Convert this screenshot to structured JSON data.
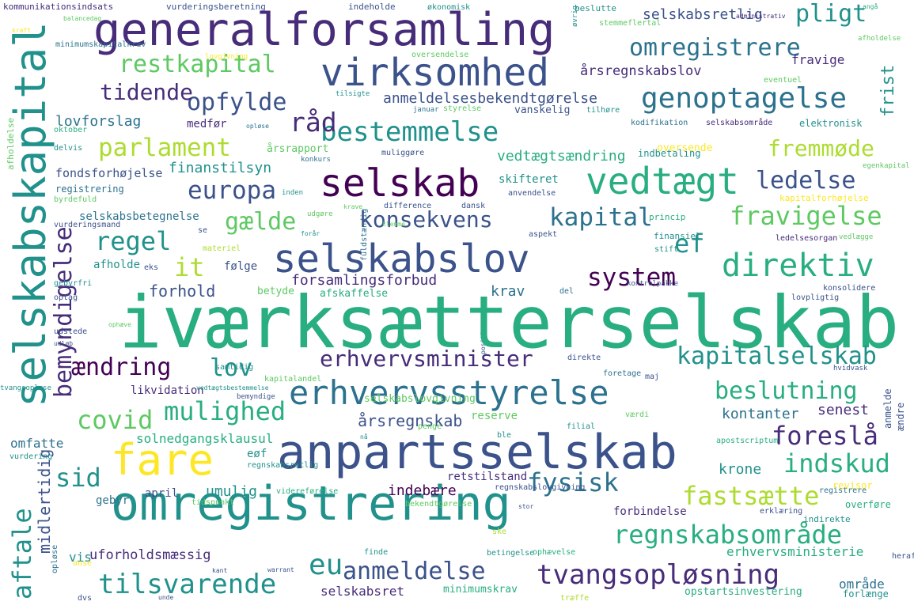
{
  "palette": {
    "dark_purple": "#440154",
    "purple": "#472c7a",
    "indigo": "#3b528b",
    "blue": "#2c728e",
    "teal": "#21918c",
    "green": "#28ae80",
    "light_green": "#5ec962",
    "lime": "#addc30",
    "yellow": "#fde725"
  },
  "words": [
    {
      "text": "iværksætterselskab",
      "c": "green"
    },
    {
      "text": "generalforsamling",
      "c": "purple"
    },
    {
      "text": "omregistrering",
      "c": "teal"
    },
    {
      "text": "anpartsselskab",
      "c": "indigo"
    },
    {
      "text": "selskabskapital",
      "c": "teal"
    },
    {
      "text": "selskabslov",
      "c": "indigo"
    },
    {
      "text": "virksomhed",
      "c": "indigo"
    },
    {
      "text": "selskab",
      "c": "dark_purple"
    },
    {
      "text": "vedtægt",
      "c": "green"
    },
    {
      "text": "erhvervsstyrelse",
      "c": "blue"
    },
    {
      "text": "fare",
      "c": "yellow"
    },
    {
      "text": "bestemmelse",
      "c": "teal"
    },
    {
      "text": "tvangsopløsning",
      "c": "purple"
    },
    {
      "text": "direktiv",
      "c": "green"
    },
    {
      "text": "genoptagelse",
      "c": "blue"
    },
    {
      "text": "omregistrere",
      "c": "blue"
    },
    {
      "text": "parlament",
      "c": "lime"
    },
    {
      "text": "restkapital",
      "c": "light_green"
    },
    {
      "text": "europa",
      "c": "indigo"
    },
    {
      "text": "ledelse",
      "c": "indigo"
    },
    {
      "text": "fravigelse",
      "c": "light_green"
    },
    {
      "text": "kapitalselskab",
      "c": "teal"
    },
    {
      "text": "erhvervsminister",
      "c": "purple"
    },
    {
      "text": "beslutning",
      "c": "green"
    },
    {
      "text": "regnskabsområde",
      "c": "green"
    },
    {
      "text": "tilsvarende",
      "c": "teal"
    },
    {
      "text": "anmeldelse",
      "c": "indigo"
    },
    {
      "text": "mulighed",
      "c": "green"
    },
    {
      "text": "foreslå",
      "c": "purple"
    },
    {
      "text": "fastsætte",
      "c": "lime"
    },
    {
      "text": "indskud",
      "c": "green"
    },
    {
      "text": "fysisk",
      "c": "blue"
    },
    {
      "text": "konsekvens",
      "c": "indigo"
    },
    {
      "text": "kapital",
      "c": "blue"
    },
    {
      "text": "gælde",
      "c": "light_green"
    },
    {
      "text": "system",
      "c": "dark_purple"
    },
    {
      "text": "regel",
      "c": "teal"
    },
    {
      "text": "opfylde",
      "c": "indigo"
    },
    {
      "text": "tidende",
      "c": "purple"
    },
    {
      "text": "råd",
      "c": "purple"
    },
    {
      "text": "pligt",
      "c": "teal"
    },
    {
      "text": "fremmøde",
      "c": "lime"
    },
    {
      "text": "ændring",
      "c": "dark_purple"
    },
    {
      "text": "lov",
      "c": "teal"
    },
    {
      "text": "covid",
      "c": "light_green"
    },
    {
      "text": "sid",
      "c": "teal"
    },
    {
      "text": "eu",
      "c": "teal"
    },
    {
      "text": "ef",
      "c": "teal"
    },
    {
      "text": "it",
      "c": "lime"
    },
    {
      "text": "bemyndigelse",
      "c": "purple"
    },
    {
      "text": "aftale",
      "c": "teal"
    },
    {
      "text": "årsregnskab",
      "c": "indigo"
    },
    {
      "text": "selskabsretlig",
      "c": "indigo"
    },
    {
      "text": "årsregnskabslov",
      "c": "purple"
    },
    {
      "text": "anmeldelsesbekendtgørelse",
      "c": "indigo"
    },
    {
      "text": "vedtægtsændring",
      "c": "green"
    },
    {
      "text": "finanstilsyn",
      "c": "teal"
    },
    {
      "text": "lovforslag",
      "c": "blue"
    },
    {
      "text": "fondsforhøjelse",
      "c": "indigo"
    },
    {
      "text": "selskabsbetegnelse",
      "c": "blue"
    },
    {
      "text": "forsamlingsforbud",
      "c": "purple"
    },
    {
      "text": "forhold",
      "c": "indigo"
    },
    {
      "text": "krav",
      "c": "blue"
    },
    {
      "text": "kontanter",
      "c": "blue"
    },
    {
      "text": "senest",
      "c": "purple"
    },
    {
      "text": "krone",
      "c": "teal"
    },
    {
      "text": "solnedgangsklausul",
      "c": "green"
    },
    {
      "text": "omfatte",
      "c": "blue"
    },
    {
      "text": "umulig",
      "c": "teal"
    },
    {
      "text": "indebære",
      "c": "dark_purple"
    },
    {
      "text": "retstilstand",
      "c": "purple"
    },
    {
      "text": "skifteret",
      "c": "teal"
    },
    {
      "text": "frist",
      "c": "teal"
    },
    {
      "text": "fravige",
      "c": "purple"
    },
    {
      "text": "medfør",
      "c": "purple"
    },
    {
      "text": "uforholdsmæssig",
      "c": "purple"
    },
    {
      "text": "vis",
      "c": "teal"
    },
    {
      "text": "midlertidig",
      "c": "indigo"
    },
    {
      "text": "erhvervsministerie",
      "c": "green"
    },
    {
      "text": "selskabsret",
      "c": "purple"
    },
    {
      "text": "forbindelse",
      "c": "purple"
    },
    {
      "text": "område",
      "c": "blue"
    },
    {
      "text": "minimumskrav",
      "c": "green"
    },
    {
      "text": "opstartsinvestering",
      "c": "green"
    },
    {
      "text": "reserve",
      "c": "light_green"
    },
    {
      "text": "afholde",
      "c": "teal"
    },
    {
      "text": "følge",
      "c": "indigo"
    },
    {
      "text": "betyde",
      "c": "light_green"
    },
    {
      "text": "afskaffelse",
      "c": "green"
    },
    {
      "text": "gebyr",
      "c": "blue"
    },
    {
      "text": "april",
      "c": "indigo"
    },
    {
      "text": "eøf",
      "c": "teal"
    },
    {
      "text": "registrering",
      "c": "blue"
    },
    {
      "text": "indbetaling",
      "c": "teal"
    },
    {
      "text": "likvidation",
      "c": "purple"
    },
    {
      "text": "selskabslovgivning",
      "c": "light_green"
    },
    {
      "text": "forlænge",
      "c": "teal"
    },
    {
      "text": "kommunikationsindsats",
      "c": "purple"
    },
    {
      "text": "vurderingsberetning",
      "c": "indigo"
    },
    {
      "text": "indeholde",
      "c": "indigo"
    },
    {
      "text": "økonomisk",
      "c": "teal"
    },
    {
      "text": "beslutte",
      "c": "teal"
    },
    {
      "text": "stemmeflertal",
      "c": "light_green"
    },
    {
      "text": "oversendelse",
      "c": "light_green"
    },
    {
      "text": "oversende",
      "c": "yellow"
    },
    {
      "text": "kodifikation",
      "c": "blue"
    },
    {
      "text": "selskabsområde",
      "c": "purple"
    },
    {
      "text": "elektronisk",
      "c": "teal"
    },
    {
      "text": "vanskelig",
      "c": "indigo"
    },
    {
      "text": "styrelse",
      "c": "light_green"
    },
    {
      "text": "januar",
      "c": "blue"
    },
    {
      "text": "tilhøre",
      "c": "teal"
    },
    {
      "text": "tilsigte",
      "c": "teal"
    },
    {
      "text": "eventuel",
      "c": "light_green"
    },
    {
      "text": "egenkapital",
      "c": "light_green"
    },
    {
      "text": "kapitalforhøjelse",
      "c": "yellow"
    },
    {
      "text": "vedlægge",
      "c": "light_green"
    },
    {
      "text": "kontrolpakke",
      "c": "indigo"
    },
    {
      "text": "lovpligtig",
      "c": "indigo"
    },
    {
      "text": "konsolidere",
      "c": "indigo"
    },
    {
      "text": "ledelsesorgan",
      "c": "purple"
    },
    {
      "text": "finansiel",
      "c": "teal"
    },
    {
      "text": "stift",
      "c": "teal"
    },
    {
      "text": "princip",
      "c": "green"
    },
    {
      "text": "aspekt",
      "c": "indigo"
    },
    {
      "text": "dansk",
      "c": "indigo"
    },
    {
      "text": "difference",
      "c": "indigo"
    },
    {
      "text": "anvendelse",
      "c": "indigo"
    },
    {
      "text": "udgøre",
      "c": "light_green"
    },
    {
      "text": "inden",
      "c": "teal"
    },
    {
      "text": "konkurs",
      "c": "blue"
    },
    {
      "text": "muliggøre",
      "c": "indigo"
    },
    {
      "text": "årsrapport",
      "c": "light_green"
    },
    {
      "text": "oktober",
      "c": "green"
    },
    {
      "text": "delvis",
      "c": "teal"
    },
    {
      "text": "byrdefuld",
      "c": "light_green"
    },
    {
      "text": "vurderingsmand",
      "c": "indigo"
    },
    {
      "text": "se",
      "c": "indigo"
    },
    {
      "text": "eks",
      "c": "indigo"
    },
    {
      "text": "materiel",
      "c": "lime"
    },
    {
      "text": "gebyrfri",
      "c": "teal"
    },
    {
      "text": "optag",
      "c": "indigo"
    },
    {
      "text": "udstede",
      "c": "indigo"
    },
    {
      "text": "udløb",
      "c": "indigo"
    },
    {
      "text": "ophæve",
      "c": "light_green"
    },
    {
      "text": "samtidig",
      "c": "teal"
    },
    {
      "text": "kapitalandel",
      "c": "light_green"
    },
    {
      "text": "vedtægtsbestemmelse",
      "c": "teal"
    },
    {
      "text": "bemyndige",
      "c": "indigo"
    },
    {
      "text": "direkte",
      "c": "indigo"
    },
    {
      "text": "foretage",
      "c": "blue"
    },
    {
      "text": "maj",
      "c": "indigo"
    },
    {
      "text": "del",
      "c": "blue"
    },
    {
      "text": "hvidvask",
      "c": "indigo"
    },
    {
      "text": "tvangsopløse",
      "c": "teal"
    },
    {
      "text": "vurdering",
      "c": "teal"
    },
    {
      "text": "regnskabsretlig",
      "c": "teal"
    },
    {
      "text": "ble",
      "c": "teal"
    },
    {
      "text": "penge",
      "c": "light_green"
    },
    {
      "text": "filial",
      "c": "teal"
    },
    {
      "text": "værdi",
      "c": "light_green"
    },
    {
      "text": "apostscriptum",
      "c": "green"
    },
    {
      "text": "anmelde",
      "c": "indigo"
    },
    {
      "text": "ændre",
      "c": "indigo"
    },
    {
      "text": "nå",
      "c": "teal"
    },
    {
      "text": "tidspunkt",
      "c": "light_green"
    },
    {
      "text": "videreførelse",
      "c": "green"
    },
    {
      "text": "bekendtgørelse",
      "c": "light_green"
    },
    {
      "text": "regnskabslovgivning",
      "c": "indigo"
    },
    {
      "text": "stor",
      "c": "indigo"
    },
    {
      "text": "revisor",
      "c": "yellow"
    },
    {
      "text": "registrere",
      "c": "blue"
    },
    {
      "text": "overføre",
      "c": "green"
    },
    {
      "text": "erklæring",
      "c": "indigo"
    },
    {
      "text": "indirekte",
      "c": "teal"
    },
    {
      "text": "ske",
      "c": "lime"
    },
    {
      "text": "finde",
      "c": "teal"
    },
    {
      "text": "betingelse",
      "c": "teal"
    },
    {
      "text": "ophævelse",
      "c": "green"
    },
    {
      "text": "træffe",
      "c": "lime"
    },
    {
      "text": "heraf",
      "c": "indigo"
    },
    {
      "text": "anse",
      "c": "yellow"
    },
    {
      "text": "dvs",
      "c": "indigo"
    },
    {
      "text": "unde",
      "c": "indigo"
    },
    {
      "text": "kant",
      "c": "indigo"
    },
    {
      "text": "warrant",
      "c": "indigo"
    },
    {
      "text": "kraft",
      "c": "yellow"
    },
    {
      "text": "minimumskapitalkrav",
      "c": "blue"
    },
    {
      "text": "lovgivning",
      "c": "yellow"
    },
    {
      "text": "opløse",
      "c": "blue"
    },
    {
      "text": "afholdelse",
      "c": "light_green"
    },
    {
      "text": "administrativ",
      "c": "purple"
    },
    {
      "text": "angå",
      "c": "green"
    },
    {
      "text": "balancedag",
      "c": "light_green"
    },
    {
      "text": "krave",
      "c": "light_green"
    },
    {
      "text": "øvrig",
      "c": "teal"
    },
    {
      "text": "positiv",
      "c": "indigo"
    },
    {
      "text": "fuldstændig",
      "c": "blue"
    },
    {
      "text": "forår",
      "c": "teal"
    },
    {
      "text": "klemme",
      "c": "light_green"
    }
  ]
}
